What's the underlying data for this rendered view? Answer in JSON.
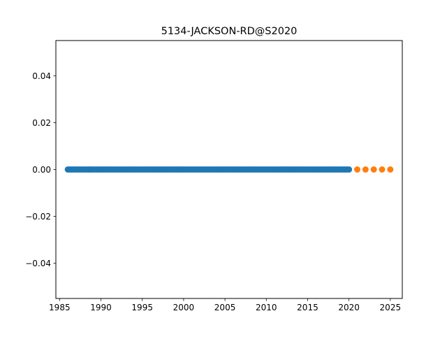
{
  "chart_data": {
    "type": "scatter",
    "title": "5134-JACKSON-RD@S2020",
    "xlabel": "",
    "ylabel": "",
    "xlim": [
      1984.55,
      2026.45
    ],
    "ylim": [
      -0.055,
      0.055
    ],
    "xticks": [
      1985,
      1990,
      1995,
      2000,
      2005,
      2010,
      2015,
      2020,
      2025
    ],
    "xtick_labels": [
      "1985",
      "1990",
      "1995",
      "2000",
      "2005",
      "2010",
      "2015",
      "2020",
      "2025"
    ],
    "yticks": [
      -0.04,
      -0.02,
      0.0,
      0.02,
      0.04
    ],
    "ytick_labels": [
      "−0.04",
      "−0.02",
      "0.00",
      "0.02",
      "0.04"
    ],
    "grid": false,
    "series": [
      {
        "color": "#1f77b4",
        "marker": "circle",
        "x_range": [
          1986,
          2020
        ],
        "x_step": 0.25,
        "y": 0.0
      },
      {
        "color": "#ff7f0e",
        "marker": "circle",
        "x": [
          2021,
          2022,
          2023,
          2024,
          2025
        ],
        "y": [
          0.0,
          0.0,
          0.0,
          0.0,
          0.0
        ]
      }
    ]
  }
}
